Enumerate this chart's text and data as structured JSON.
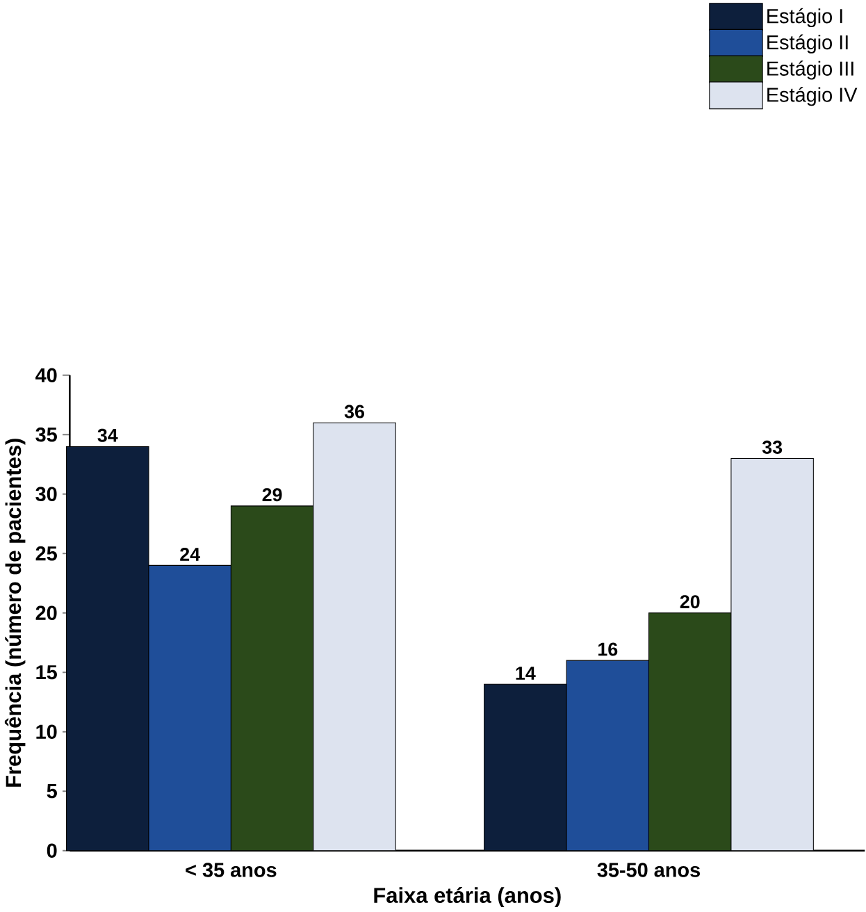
{
  "chart_data": {
    "type": "bar",
    "xlabel": "Faixa etária (anos)",
    "ylabel": "Frequência (número de pacientes)",
    "categories": [
      "< 35 anos",
      "35-50 anos"
    ],
    "series": [
      {
        "name": "Estágio I",
        "color": "#0d1f3c",
        "values": [
          34,
          14
        ]
      },
      {
        "name": "Estágio II",
        "color": "#1f4e99",
        "values": [
          24,
          16
        ]
      },
      {
        "name": "Estágio III",
        "color": "#2b4a1a",
        "values": [
          29,
          20
        ]
      },
      {
        "name": "Estágio IV",
        "color": "#dde3ef",
        "values": [
          36,
          33
        ]
      }
    ],
    "ylim": [
      0,
      40
    ],
    "yticks": [
      0,
      5,
      10,
      15,
      20,
      25,
      30,
      35,
      40
    ],
    "data_labels": true,
    "legend": "top right",
    "grid": false
  }
}
